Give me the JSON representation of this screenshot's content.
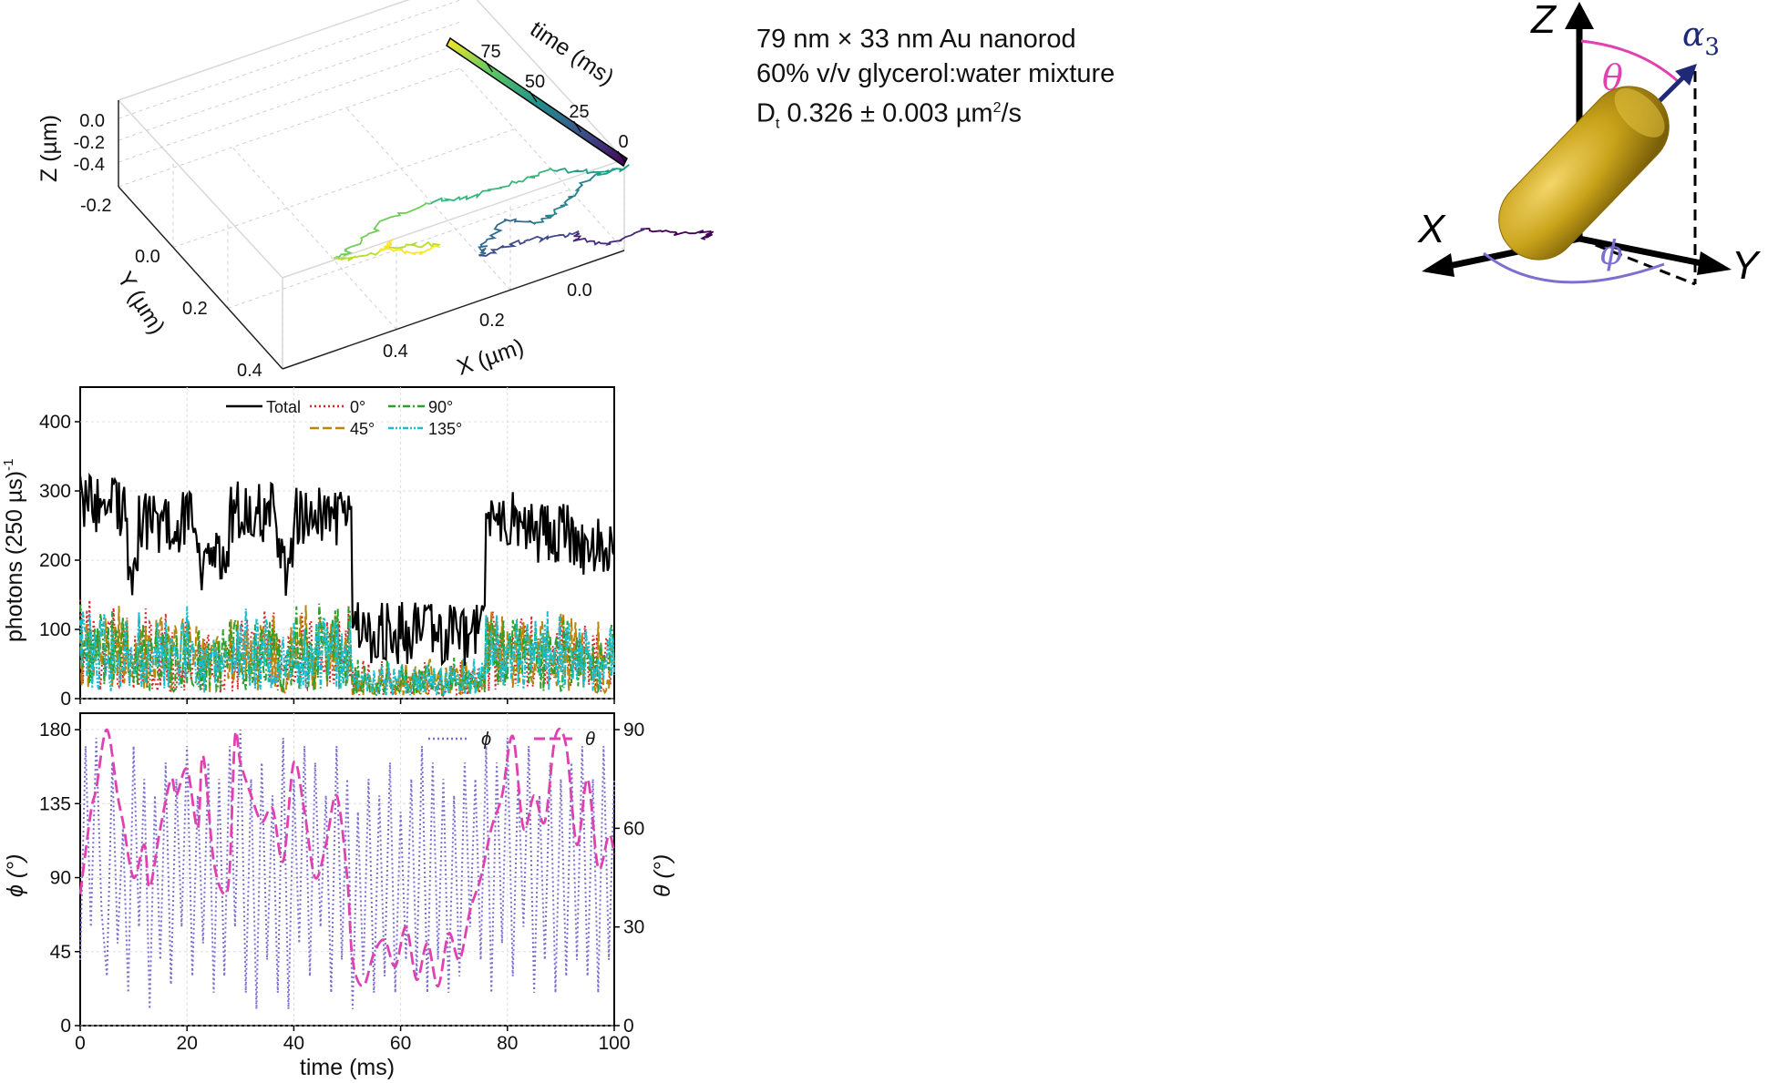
{
  "info": {
    "line1": "79 nm × 33 nm Au nanorod",
    "line2": "60% v/v glycerol:water mixture",
    "line3_prefix": "D",
    "line3_sub": "t",
    "line3_value": " 0.326 ± 0.003 µm",
    "line3_sup": "2",
    "line3_suffix": "/s"
  },
  "colors": {
    "total": "#000000",
    "deg0": "#d62728",
    "deg45": "#b8860b",
    "deg90": "#2ca02c",
    "deg135": "#17becf",
    "phi": "#7b6fd0",
    "theta": "#e040b0",
    "rod": "#c9a31a",
    "arrow": "#1e2a78"
  },
  "chart_data": [
    {
      "type": "line3d",
      "colorbar": {
        "label": "time (ms)",
        "ticks": [
          0,
          25,
          50,
          75
        ],
        "range": [
          0,
          100
        ]
      },
      "axes": {
        "x": {
          "label": "X (µm)",
          "ticks": [
            "0.0",
            "0.2",
            "0.4"
          ]
        },
        "y": {
          "label": "Y (µm)",
          "ticks": [
            "-0.2",
            "0.0",
            "0.2",
            "0.4"
          ]
        },
        "z": {
          "label": "Z (µm)",
          "ticks": [
            "0.0",
            "-0.2",
            "-0.4"
          ]
        }
      },
      "trajectory": {
        "x": [
          0.0,
          -0.02,
          0.02,
          0.05,
          0.1,
          0.14,
          0.12,
          0.15,
          0.2,
          0.24,
          0.22,
          0.18,
          0.14,
          0.1,
          0.06,
          0.02,
          -0.04,
          0.0,
          0.05,
          0.1,
          0.16,
          0.22,
          0.3,
          0.36,
          0.4,
          0.38,
          0.32,
          0.28,
          0.32,
          0.36,
          0.33
        ],
        "y": [
          -0.2,
          -0.17,
          -0.12,
          -0.1,
          -0.08,
          -0.05,
          0.0,
          0.03,
          0.02,
          0.06,
          0.1,
          0.13,
          0.12,
          0.16,
          0.2,
          0.22,
          0.24,
          0.28,
          0.3,
          0.32,
          0.34,
          0.33,
          0.3,
          0.27,
          0.22,
          0.18,
          0.15,
          0.12,
          0.1,
          0.14,
          0.17
        ],
        "z": [
          -0.02,
          -0.05,
          -0.08,
          -0.04,
          -0.1,
          -0.06,
          -0.12,
          -0.15,
          -0.1,
          -0.18,
          -0.2,
          -0.16,
          -0.22,
          -0.28,
          -0.3,
          -0.26,
          -0.32,
          -0.36,
          -0.3,
          -0.34,
          -0.38,
          -0.3,
          -0.26,
          -0.3,
          -0.22,
          -0.18,
          -0.14,
          -0.16,
          -0.12,
          -0.1,
          -0.14
        ]
      }
    },
    {
      "type": "line",
      "ylabel": "photons (250 µs)",
      "ylabel_sup": "-1",
      "ylim": [
        0,
        450
      ],
      "yticks": [
        0,
        100,
        200,
        300,
        400
      ],
      "xlim": [
        0,
        100
      ],
      "legend": {
        "placement": "top-center",
        "entries": [
          "Total",
          "0°",
          "90°",
          "45°",
          "135°"
        ]
      },
      "segments": [
        {
          "from": 0,
          "to": 9,
          "level": 280
        },
        {
          "from": 9,
          "to": 11,
          "level": 190
        },
        {
          "from": 11,
          "to": 22,
          "level": 255
        },
        {
          "from": 22,
          "to": 28,
          "level": 195
        },
        {
          "from": 28,
          "to": 37,
          "level": 270
        },
        {
          "from": 37,
          "to": 40,
          "level": 190
        },
        {
          "from": 40,
          "to": 51,
          "level": 265
        },
        {
          "from": 51,
          "to": 67,
          "level": 95
        },
        {
          "from": 67,
          "to": 76,
          "level": 92
        },
        {
          "from": 76,
          "to": 83,
          "level": 260
        },
        {
          "from": 83,
          "to": 92,
          "level": 240
        },
        {
          "from": 92,
          "to": 100,
          "level": 220
        }
      ],
      "series": [
        {
          "name": "Total",
          "key": "total"
        },
        {
          "name": "0°",
          "key": "deg0"
        },
        {
          "name": "45°",
          "key": "deg45"
        },
        {
          "name": "90°",
          "key": "deg90"
        },
        {
          "name": "135°",
          "key": "deg135"
        }
      ]
    },
    {
      "type": "line",
      "xlabel": "time (ms)",
      "ylabel_left": "ϕ (°)",
      "ylabel_right": "θ (°)",
      "xlim": [
        0,
        100
      ],
      "xticks": [
        0,
        20,
        40,
        60,
        80,
        100
      ],
      "ylim_left": [
        0,
        190
      ],
      "yticks_left": [
        0,
        45,
        90,
        135,
        180
      ],
      "ylim_right": [
        0,
        95
      ],
      "yticks_right": [
        0,
        30,
        60,
        90
      ],
      "legend": {
        "placement": "top-right",
        "entries": [
          "ϕ",
          "θ"
        ]
      },
      "theta_x": [
        0,
        2,
        3,
        5,
        7,
        8,
        10,
        12,
        13,
        15,
        17,
        18,
        20,
        22,
        23,
        25,
        27,
        28,
        29,
        30,
        32,
        34,
        36,
        38,
        40,
        42,
        44,
        46,
        48,
        50,
        51,
        53,
        55,
        57,
        59,
        61,
        63,
        65,
        67,
        69,
        71,
        73,
        75,
        77,
        79,
        81,
        83,
        85,
        87,
        89,
        91,
        93,
        95,
        97,
        99,
        100
      ],
      "theta": [
        40,
        65,
        72,
        90,
        70,
        62,
        45,
        55,
        42,
        60,
        75,
        70,
        78,
        60,
        82,
        50,
        40,
        48,
        88,
        80,
        70,
        62,
        66,
        50,
        80,
        65,
        45,
        55,
        70,
        45,
        20,
        12,
        22,
        26,
        18,
        30,
        14,
        25,
        12,
        28,
        20,
        35,
        45,
        60,
        70,
        88,
        60,
        70,
        62,
        88,
        85,
        55,
        75,
        48,
        58,
        52
      ],
      "phi_x": [
        0,
        1,
        2,
        3,
        4,
        5,
        6,
        7,
        8,
        9,
        10,
        11,
        12,
        13,
        14,
        15,
        16,
        17,
        18,
        19,
        20,
        21,
        22,
        23,
        24,
        25,
        26,
        27,
        28,
        29,
        30,
        31,
        32,
        33,
        34,
        35,
        36,
        37,
        38,
        39,
        40,
        41,
        42,
        43,
        44,
        45,
        46,
        47,
        48,
        49,
        50,
        51,
        52,
        53,
        54,
        55,
        56,
        57,
        58,
        59,
        60,
        61,
        62,
        63,
        64,
        65,
        66,
        67,
        68,
        69,
        70,
        71,
        72,
        73,
        74,
        75,
        76,
        77,
        78,
        79,
        80,
        81,
        82,
        83,
        84,
        85,
        86,
        87,
        88,
        89,
        90,
        91,
        92,
        93,
        94,
        95,
        96,
        97,
        98,
        99,
        100
      ],
      "phi": [
        40,
        170,
        60,
        175,
        70,
        30,
        160,
        50,
        120,
        20,
        170,
        60,
        150,
        10,
        140,
        40,
        160,
        25,
        150,
        60,
        170,
        30,
        140,
        50,
        160,
        20,
        150,
        30,
        170,
        60,
        180,
        20,
        150,
        10,
        160,
        40,
        140,
        20,
        175,
        10,
        150,
        50,
        170,
        30,
        160,
        60,
        140,
        20,
        170,
        40,
        150,
        10,
        130,
        30,
        150,
        20,
        140,
        30,
        160,
        20,
        130,
        40,
        150,
        30,
        170,
        20,
        160,
        40,
        150,
        20,
        140,
        30,
        160,
        60,
        150,
        40,
        170,
        20,
        160,
        50,
        175,
        30,
        150,
        60,
        170,
        20,
        140,
        40,
        160,
        20,
        150,
        30,
        160,
        40,
        170,
        30,
        150,
        20,
        170,
        40,
        150
      ]
    }
  ],
  "diagram": {
    "z_label": "Z",
    "x_label": "X",
    "y_label": "Y",
    "alpha_label": "α",
    "alpha_sub": "3",
    "theta_label": "θ",
    "phi_label": "ϕ"
  }
}
